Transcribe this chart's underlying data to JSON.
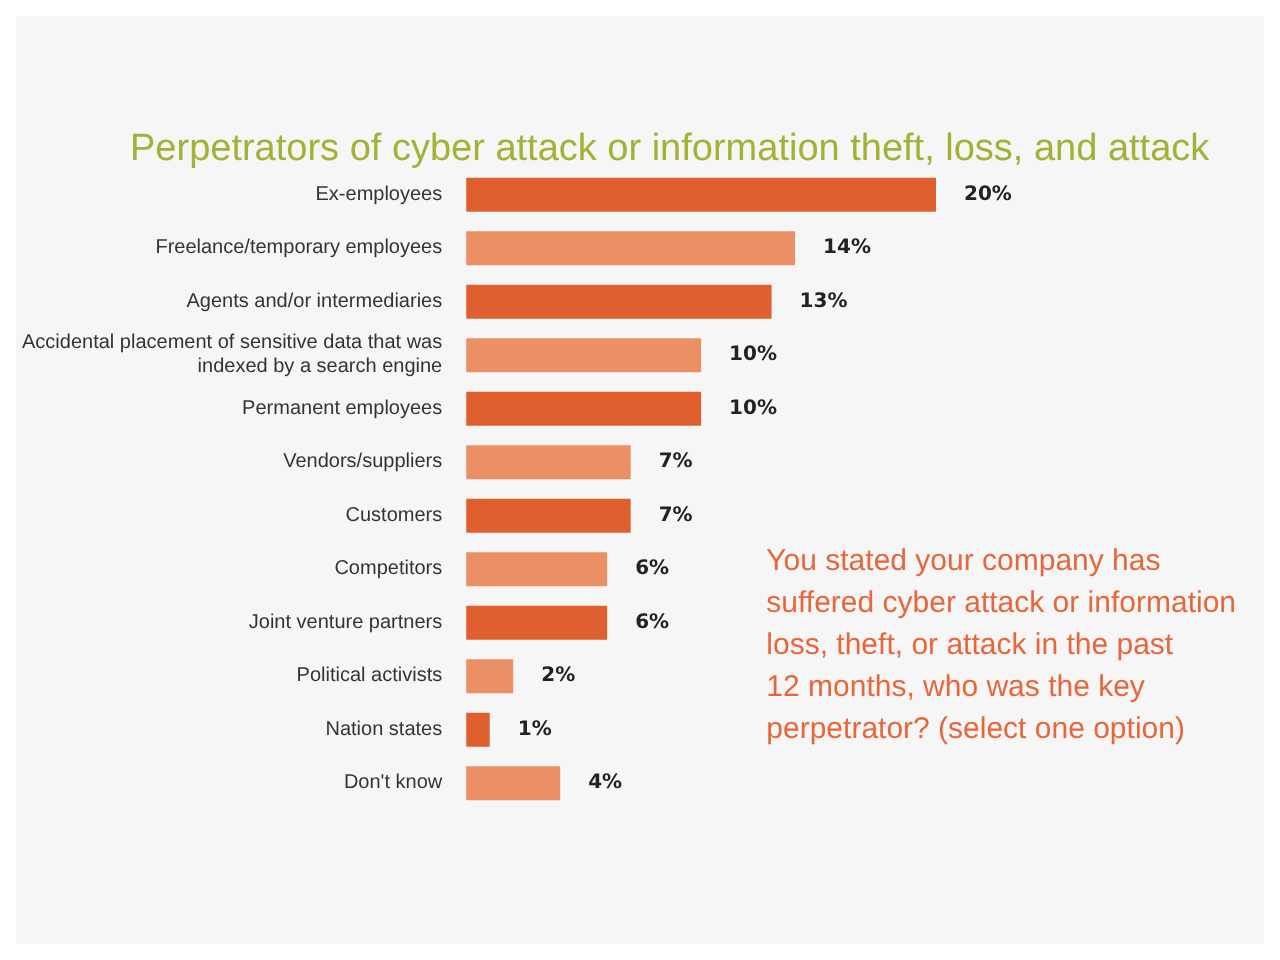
{
  "chart_data": {
    "type": "bar",
    "orientation": "horizontal",
    "title": "Perpetrators of cyber attack or information theft, loss, and attack",
    "categories": [
      "Ex-employees",
      "Freelance/temporary employees",
      "Agents and/or intermediaries",
      "Accidental placement of sensitive data that was\nindexed by a search engine",
      "Permanent employees",
      "Vendors/suppliers",
      "Customers",
      "Competitors",
      "Joint venture partners",
      "Political activists",
      "Nation states",
      "Don't know"
    ],
    "values": [
      20,
      14,
      13,
      10,
      10,
      7,
      7,
      6,
      6,
      2,
      1,
      4
    ],
    "colors": [
      "#e05f2e",
      "#eb9065",
      "#e05f2e",
      "#eb9065",
      "#e05f2e",
      "#eb9065",
      "#e05f2e",
      "#eb9065",
      "#e05f2e",
      "#eb9065",
      "#e05f2e",
      "#eb9065"
    ],
    "value_labels": [
      "20%",
      "14%",
      "13%",
      "10%",
      "10%",
      "7%",
      "7%",
      "6%",
      "6%",
      "2%",
      "1%",
      "4%"
    ],
    "annotations": [
      "You stated your company has\nsuffered cyber attack or information\nloss, theft, or attack in the past\n12 months, who was the key\nperpetrator? (select one option)"
    ]
  }
}
